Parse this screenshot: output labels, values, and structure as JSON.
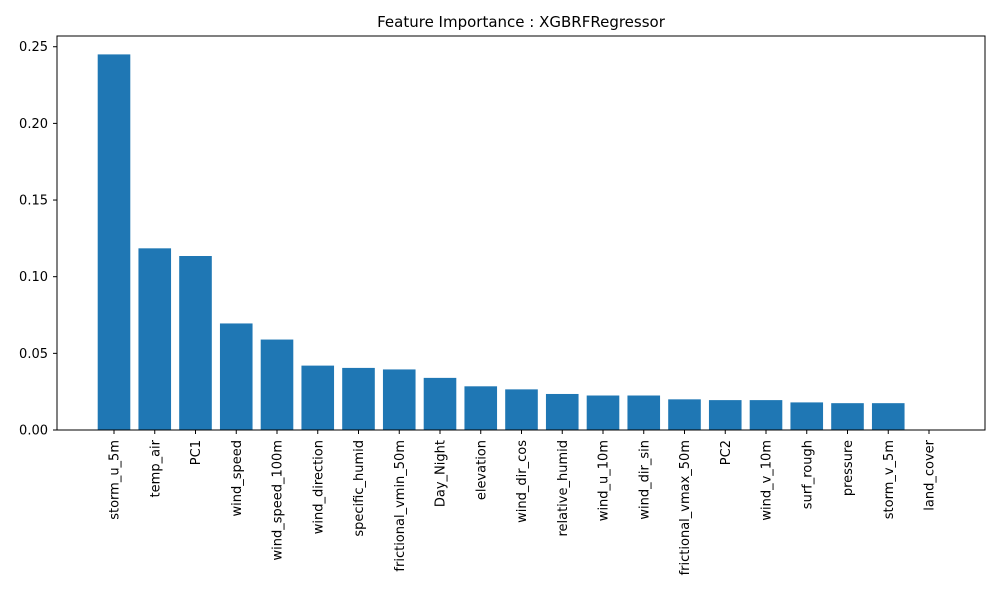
{
  "chart_data": {
    "type": "bar",
    "title": "Feature Importance : XGBRFRegressor",
    "xlabel": "",
    "ylabel": "",
    "categories": [
      "storm_u_5m",
      "temp_air",
      "PC1",
      "wind_speed",
      "wind_speed_100m",
      "wind_direction",
      "specific_humid",
      "frictional_vmin_50m",
      "Day_Night",
      "elevation",
      "wind_dir_cos",
      "relative_humid",
      "wind_u_10m",
      "wind_dir_sin",
      "frictional_vmax_50m",
      "PC2",
      "wind_v_10m",
      "surf_rough",
      "pressure",
      "storm_v_5m",
      "land_cover"
    ],
    "values": [
      0.245,
      0.1185,
      0.1135,
      0.0695,
      0.059,
      0.042,
      0.0405,
      0.0395,
      0.034,
      0.0285,
      0.0265,
      0.0235,
      0.0225,
      0.0225,
      0.02,
      0.0195,
      0.0195,
      0.018,
      0.0175,
      0.0175,
      0.0
    ],
    "yticks": [
      "0.00",
      "0.05",
      "0.10",
      "0.15",
      "0.20",
      "0.25"
    ],
    "ylim": [
      0,
      0.257
    ],
    "bar_color": "#1f77b4",
    "grid": false,
    "legend": "none"
  }
}
